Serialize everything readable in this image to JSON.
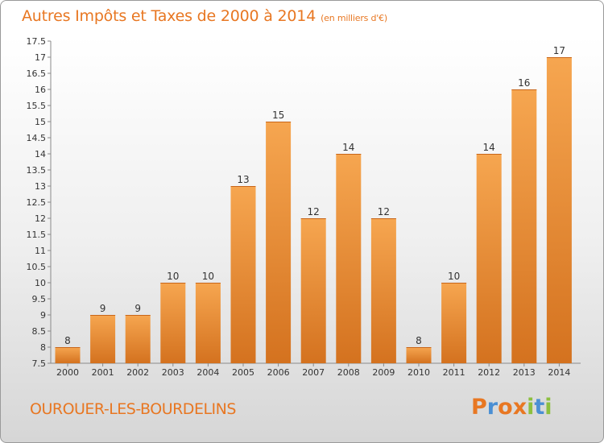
{
  "header": {
    "title": "Autres Impôts et Taxes de 2000 à 2014",
    "unit": "(en milliers d'€)"
  },
  "footer": {
    "commune": "OUROUER-LES-BOURDELINS",
    "logo": "Proxiti"
  },
  "colors": {
    "accent": "#e87722",
    "bar_light": "#f6a650",
    "bar_dark": "#d4721f",
    "logo_letters": [
      "#e87722",
      "#4a8fd4",
      "#e87722",
      "#e87722",
      "#8cbf3f",
      "#4a8fd4",
      "#8cbf3f"
    ]
  },
  "chart_data": {
    "type": "bar",
    "categories": [
      "2000",
      "2001",
      "2002",
      "2003",
      "2004",
      "2005",
      "2006",
      "2007",
      "2008",
      "2009",
      "2010",
      "2011",
      "2012",
      "2013",
      "2014"
    ],
    "values": [
      8,
      9,
      9,
      10,
      10,
      13,
      15,
      12,
      14,
      12,
      8,
      10,
      14,
      16,
      17
    ],
    "ylim": [
      7.5,
      17.5
    ],
    "yticks": [
      "7.5",
      "8",
      "8.5",
      "9",
      "9.5",
      "10",
      "10.5",
      "11",
      "11.5",
      "12",
      "12.5",
      "13",
      "13.5",
      "14",
      "14.5",
      "15",
      "15.5",
      "16",
      "16.5",
      "17",
      "17.5"
    ],
    "grid": false,
    "data_labels": true
  }
}
